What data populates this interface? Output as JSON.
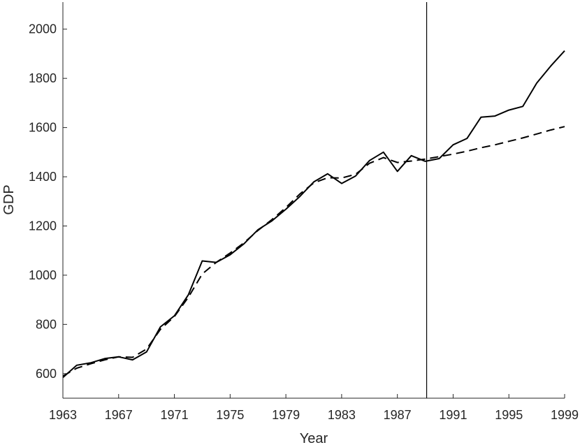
{
  "chart_data": {
    "type": "line",
    "title": "",
    "xlabel": "Year",
    "ylabel": "GDP",
    "xlim": [
      1963,
      1999
    ],
    "ylim": [
      500,
      2110
    ],
    "xticks": [
      1963,
      1967,
      1971,
      1975,
      1979,
      1983,
      1987,
      1991,
      1995,
      1999
    ],
    "yticks": [
      600,
      800,
      1000,
      1200,
      1400,
      1600,
      1800,
      2000
    ],
    "grid": false,
    "vertical_line_x": 1989.1,
    "series": [
      {
        "style": "solid",
        "color": "#000000",
        "x": [
          1963,
          1964,
          1965,
          1966,
          1967,
          1968,
          1969,
          1970,
          1971,
          1972,
          1973,
          1974,
          1975,
          1976,
          1977,
          1978,
          1979,
          1980,
          1981,
          1982,
          1983,
          1984,
          1985,
          1986,
          1987,
          1988,
          1989,
          1990,
          1991,
          1992,
          1993,
          1994,
          1995,
          1996,
          1997,
          1998,
          1999
        ],
        "y": [
          584,
          634,
          644,
          661,
          668,
          656,
          688,
          790,
          835,
          920,
          1058,
          1052,
          1083,
          1128,
          1185,
          1221,
          1268,
          1320,
          1379,
          1412,
          1373,
          1403,
          1466,
          1500,
          1422,
          1486,
          1463,
          1474,
          1530,
          1556,
          1642,
          1647,
          1671,
          1686,
          1781,
          1850,
          1912
        ]
      },
      {
        "style": "dashed",
        "color": "#000000",
        "x": [
          1963,
          1964,
          1965,
          1966,
          1967,
          1968,
          1969,
          1970,
          1971,
          1972,
          1973,
          1974,
          1975,
          1976,
          1977,
          1978,
          1979,
          1980,
          1981,
          1982,
          1983,
          1984,
          1985,
          1986,
          1987,
          1988,
          1989,
          1990,
          1991,
          1992,
          1993,
          1994,
          1995,
          1996,
          1997,
          1998,
          1999
        ],
        "y": [
          590,
          622,
          640,
          656,
          668,
          666,
          700,
          780,
          832,
          910,
          1005,
          1052,
          1090,
          1132,
          1182,
          1226,
          1275,
          1330,
          1375,
          1396,
          1395,
          1410,
          1455,
          1478,
          1458,
          1464,
          1472,
          1482,
          1492,
          1504,
          1518,
          1530,
          1544,
          1558,
          1574,
          1590,
          1604
        ]
      }
    ]
  }
}
